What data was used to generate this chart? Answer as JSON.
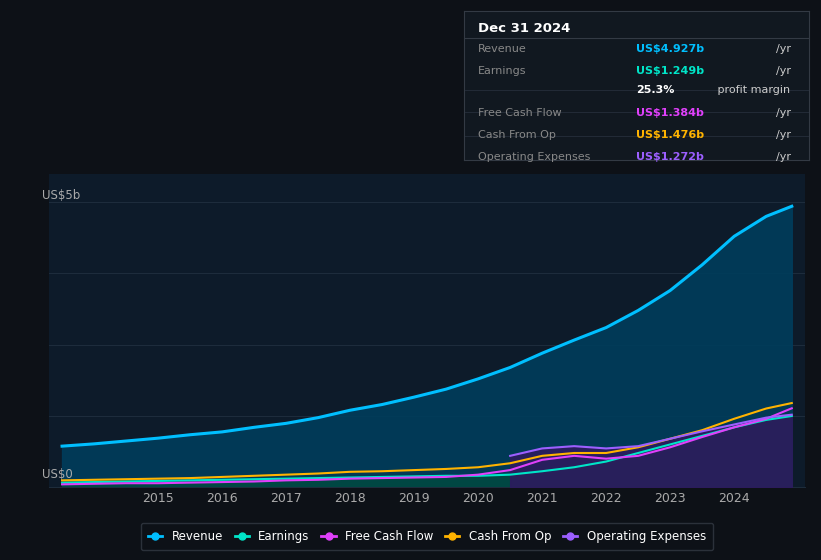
{
  "bg_color": "#0d1117",
  "plot_bg_color": "#0d1b2a",
  "grid_color": "#1e2d3d",
  "title_box": {
    "date": "Dec 31 2024",
    "rows": [
      {
        "label": "Revenue",
        "value": "US$4.927b",
        "unit": "/yr",
        "color": "#00bfff"
      },
      {
        "label": "Earnings",
        "value": "US$1.249b",
        "unit": "/yr",
        "color": "#00e5c8"
      },
      {
        "label": "",
        "value": "25.3%",
        "unit": " profit margin",
        "color": "#ffffff"
      },
      {
        "label": "Free Cash Flow",
        "value": "US$1.384b",
        "unit": "/yr",
        "color": "#e040fb"
      },
      {
        "label": "Cash From Op",
        "value": "US$1.476b",
        "unit": "/yr",
        "color": "#ffb300"
      },
      {
        "label": "Operating Expenses",
        "value": "US$1.272b",
        "unit": "/yr",
        "color": "#9c5fff"
      }
    ]
  },
  "ylabel_top": "US$5b",
  "ylabel_bottom": "US$0",
  "years": [
    2013.5,
    2014.0,
    2014.5,
    2015.0,
    2015.5,
    2016.0,
    2016.5,
    2017.0,
    2017.5,
    2018.0,
    2018.5,
    2019.0,
    2019.5,
    2020.0,
    2020.5,
    2021.0,
    2021.5,
    2022.0,
    2022.5,
    2023.0,
    2023.5,
    2024.0,
    2024.5,
    2024.9
  ],
  "revenue": [
    0.72,
    0.76,
    0.81,
    0.86,
    0.92,
    0.97,
    1.05,
    1.12,
    1.22,
    1.35,
    1.45,
    1.58,
    1.72,
    1.9,
    2.1,
    2.35,
    2.58,
    2.8,
    3.1,
    3.45,
    3.9,
    4.4,
    4.75,
    4.927
  ],
  "earnings": [
    0.08,
    0.09,
    0.1,
    0.11,
    0.12,
    0.13,
    0.14,
    0.15,
    0.16,
    0.17,
    0.18,
    0.19,
    0.2,
    0.2,
    0.22,
    0.28,
    0.35,
    0.45,
    0.6,
    0.75,
    0.9,
    1.05,
    1.18,
    1.249
  ],
  "free_cash_flow": [
    0.05,
    0.06,
    0.07,
    0.07,
    0.08,
    0.09,
    0.1,
    0.12,
    0.13,
    0.15,
    0.16,
    0.17,
    0.18,
    0.22,
    0.3,
    0.48,
    0.55,
    0.5,
    0.55,
    0.7,
    0.88,
    1.05,
    1.2,
    1.384
  ],
  "cash_from_op": [
    0.12,
    0.13,
    0.14,
    0.15,
    0.16,
    0.18,
    0.2,
    0.22,
    0.24,
    0.27,
    0.28,
    0.3,
    0.32,
    0.35,
    0.42,
    0.55,
    0.6,
    0.6,
    0.7,
    0.85,
    1.0,
    1.2,
    1.38,
    1.476
  ],
  "op_expenses": [
    0.0,
    0.0,
    0.0,
    0.0,
    0.0,
    0.0,
    0.0,
    0.0,
    0.0,
    0.0,
    0.0,
    0.0,
    0.0,
    0.0,
    0.55,
    0.68,
    0.72,
    0.68,
    0.72,
    0.85,
    0.98,
    1.1,
    1.22,
    1.272
  ],
  "revenue_color": "#00bfff",
  "earnings_color": "#00e5c8",
  "fcf_color": "#e040fb",
  "cashop_color": "#ffb300",
  "opex_color": "#9c5fff",
  "revenue_fill": "#003d5c",
  "earnings_fill": "#004d3d",
  "opex_fill": "#2d1b5e",
  "xlim": [
    2013.3,
    2025.1
  ],
  "ylim": [
    0,
    5.5
  ],
  "xtick_years": [
    2015,
    2016,
    2017,
    2018,
    2019,
    2020,
    2021,
    2022,
    2023,
    2024
  ],
  "legend": [
    {
      "label": "Revenue",
      "color": "#00bfff"
    },
    {
      "label": "Earnings",
      "color": "#00e5c8"
    },
    {
      "label": "Free Cash Flow",
      "color": "#e040fb"
    },
    {
      "label": "Cash From Op",
      "color": "#ffb300"
    },
    {
      "label": "Operating Expenses",
      "color": "#9c5fff"
    }
  ]
}
